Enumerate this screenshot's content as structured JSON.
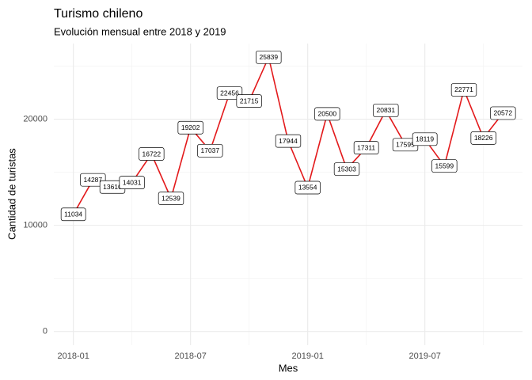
{
  "chart_data": {
    "type": "line",
    "title": "Turismo chileno",
    "subtitle": "Evolución mensual entre 2018 y 2019",
    "x_label": "Mes",
    "y_label": "Cantidad de turistas",
    "x": [
      "2018-01",
      "2018-02",
      "2018-03",
      "2018-04",
      "2018-05",
      "2018-06",
      "2018-07",
      "2018-08",
      "2018-09",
      "2018-10",
      "2018-11",
      "2018-12",
      "2019-01",
      "2019-02",
      "2019-03",
      "2019-04",
      "2019-05",
      "2019-06",
      "2019-07",
      "2019-08",
      "2019-09",
      "2019-10",
      "2019-11"
    ],
    "values": [
      11034,
      14287,
      13610,
      14031,
      16722,
      12539,
      19202,
      17037,
      22456,
      21715,
      25839,
      17944,
      13554,
      20500,
      15303,
      17311,
      20831,
      17595,
      18119,
      15599,
      22771,
      18226,
      20572
    ],
    "color": "#e31a1c",
    "xlim": [
      "2017-12",
      "2019-12"
    ],
    "xticks": [
      "2018-01",
      "2018-07",
      "2019-01",
      "2019-07"
    ],
    "ylim": [
      -1292,
      27131
    ],
    "yticks": [
      0,
      10000,
      20000
    ],
    "grid": true
  }
}
